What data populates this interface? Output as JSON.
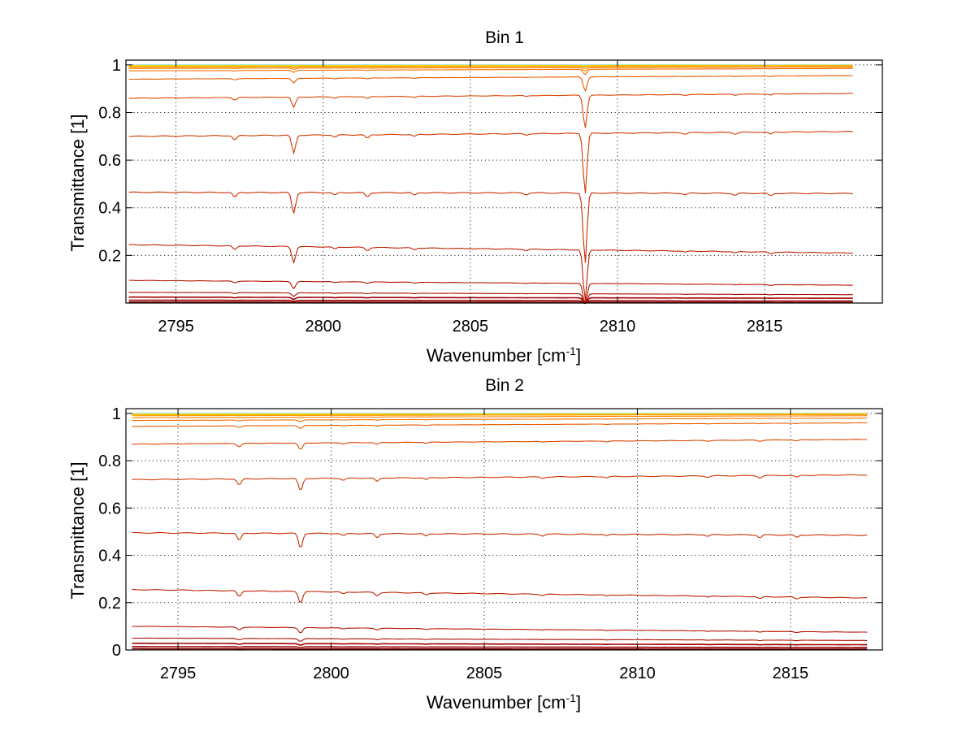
{
  "chart_data": [
    {
      "type": "line",
      "title": "Bin 1",
      "xlabel": "Wavenumber [cm",
      "xlabel_sup": "-1",
      "xlabel_end": "]",
      "ylabel": "Transmittance [1]",
      "xlim": [
        2793.3,
        2819.0
      ],
      "ylim": [
        0.0,
        1.02
      ],
      "xticks": [
        2795,
        2800,
        2805,
        2810,
        2815
      ],
      "xtick_labels": [
        "2795",
        "2800",
        "2805",
        "2810",
        "2815"
      ],
      "yticks": [
        0.2,
        0.4,
        0.6,
        0.8,
        1.0
      ],
      "ytick_labels": [
        "0.2",
        "0.4",
        "0.6",
        "0.8",
        "1"
      ],
      "grid": true,
      "x_range": [
        2793.4,
        2818.0
      ],
      "absorption_lines": [
        {
          "x": 2797.0,
          "depth": 0.06
        },
        {
          "x": 2799.0,
          "depth": 0.25
        },
        {
          "x": 2800.4,
          "depth": 0.03
        },
        {
          "x": 2801.5,
          "depth": 0.05
        },
        {
          "x": 2803.1,
          "depth": 0.03
        },
        {
          "x": 2806.9,
          "depth": 0.02
        },
        {
          "x": 2808.9,
          "depth": 0.85
        },
        {
          "x": 2812.3,
          "depth": 0.02
        },
        {
          "x": 2814.0,
          "depth": 0.025
        },
        {
          "x": 2815.2,
          "depth": 0.03
        }
      ],
      "series": [
        {
          "start": 1.0,
          "end": 1.0,
          "color": "#80d8ff"
        },
        {
          "start": 0.998,
          "end": 0.999,
          "color": "#bfe84a"
        },
        {
          "start": 0.996,
          "end": 0.998,
          "color": "#ffd200"
        },
        {
          "start": 0.993,
          "end": 0.997,
          "color": "#ffb400"
        },
        {
          "start": 0.99,
          "end": 0.995,
          "color": "#ff9b00"
        },
        {
          "start": 0.985,
          "end": 0.99,
          "color": "#ff8200"
        },
        {
          "start": 0.975,
          "end": 0.985,
          "color": "#f77000"
        },
        {
          "start": 0.94,
          "end": 0.955,
          "color": "#e85a00"
        },
        {
          "start": 0.86,
          "end": 0.88,
          "color": "#dc4400"
        },
        {
          "start": 0.7,
          "end": 0.72,
          "color": "#d23800"
        },
        {
          "start": 0.465,
          "end": 0.46,
          "color": "#c82c00"
        },
        {
          "start": 0.245,
          "end": 0.21,
          "color": "#be2000"
        },
        {
          "start": 0.095,
          "end": 0.075,
          "color": "#b41400"
        },
        {
          "start": 0.045,
          "end": 0.035,
          "color": "#aa0a00"
        },
        {
          "start": 0.025,
          "end": 0.02,
          "color": "#a00000"
        },
        {
          "start": 0.012,
          "end": 0.008,
          "color": "#960000"
        },
        {
          "start": 0.004,
          "end": 0.002,
          "color": "#8c0000"
        }
      ]
    },
    {
      "type": "line",
      "title": "Bin 2",
      "xlabel": "Wavenumber [cm",
      "xlabel_sup": "-1",
      "xlabel_end": "]",
      "ylabel": "Transmittance [1]",
      "xlim": [
        2793.3,
        2818.0
      ],
      "ylim": [
        0.0,
        1.02
      ],
      "xticks": [
        2795,
        2800,
        2805,
        2810,
        2815
      ],
      "xtick_labels": [
        "2795",
        "2800",
        "2805",
        "2810",
        "2815"
      ],
      "yticks": [
        0.0,
        0.2,
        0.4,
        0.6,
        0.8,
        1.0
      ],
      "ytick_labels": [
        "0",
        "0.2",
        "0.4",
        "0.6",
        "0.8",
        "1"
      ],
      "grid": true,
      "x_range": [
        2793.5,
        2817.5
      ],
      "absorption_lines": [
        {
          "x": 2797.0,
          "depth": 0.09
        },
        {
          "x": 2799.0,
          "depth": 0.18
        },
        {
          "x": 2800.4,
          "depth": 0.03
        },
        {
          "x": 2801.5,
          "depth": 0.05
        },
        {
          "x": 2803.1,
          "depth": 0.03
        },
        {
          "x": 2806.9,
          "depth": 0.02
        },
        {
          "x": 2809.0,
          "depth": 0.02
        },
        {
          "x": 2812.3,
          "depth": 0.02
        },
        {
          "x": 2814.0,
          "depth": 0.035
        },
        {
          "x": 2815.2,
          "depth": 0.03
        }
      ],
      "series": [
        {
          "start": 1.0,
          "end": 1.0,
          "color": "#80d8ff"
        },
        {
          "start": 0.998,
          "end": 0.999,
          "color": "#bfe84a"
        },
        {
          "start": 0.996,
          "end": 0.998,
          "color": "#ffd200"
        },
        {
          "start": 0.993,
          "end": 0.997,
          "color": "#ffb400"
        },
        {
          "start": 0.99,
          "end": 0.995,
          "color": "#ff9b00"
        },
        {
          "start": 0.982,
          "end": 0.99,
          "color": "#ff8200"
        },
        {
          "start": 0.97,
          "end": 0.98,
          "color": "#f77000"
        },
        {
          "start": 0.945,
          "end": 0.96,
          "color": "#e85a00"
        },
        {
          "start": 0.87,
          "end": 0.89,
          "color": "#dc4400"
        },
        {
          "start": 0.72,
          "end": 0.74,
          "color": "#d23800"
        },
        {
          "start": 0.495,
          "end": 0.485,
          "color": "#c82c00"
        },
        {
          "start": 0.255,
          "end": 0.22,
          "color": "#be2000"
        },
        {
          "start": 0.1,
          "end": 0.075,
          "color": "#b41400"
        },
        {
          "start": 0.05,
          "end": 0.04,
          "color": "#aa0a00"
        },
        {
          "start": 0.028,
          "end": 0.022,
          "color": "#a00000"
        },
        {
          "start": 0.014,
          "end": 0.01,
          "color": "#960000"
        },
        {
          "start": 0.005,
          "end": 0.003,
          "color": "#8c0000"
        }
      ]
    }
  ]
}
